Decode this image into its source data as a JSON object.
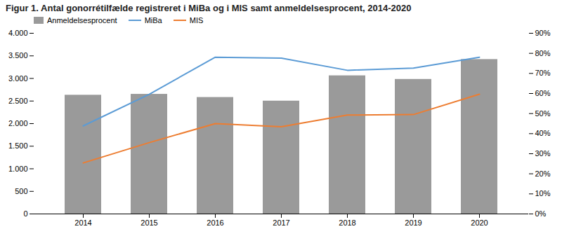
{
  "chart_data": {
    "type": "bar",
    "title": "Figur 1. Antal gonorrétilfælde registreret i MiBa og i MIS samt anmeldelsesprocent, 2014-2020",
    "categories": [
      "2014",
      "2015",
      "2016",
      "2017",
      "2018",
      "2019",
      "2020"
    ],
    "series": [
      {
        "name": "Anmeldelsesprocent",
        "type": "bar",
        "color": "#9a9a9a",
        "values": [
          2630,
          2650,
          2580,
          2500,
          3060,
          2980,
          3420
        ]
      },
      {
        "name": "MiBa",
        "type": "line",
        "color": "#5b9bd5",
        "values": [
          1950,
          2650,
          3470,
          3450,
          3180,
          3230,
          3470
        ]
      },
      {
        "name": "MIS",
        "type": "line",
        "color": "#ed7d31",
        "values": [
          1130,
          1580,
          2000,
          1930,
          2190,
          2200,
          2650
        ]
      }
    ],
    "ylim": [
      0,
      4000
    ],
    "yticks": [
      0,
      500,
      {
        "value": 1000,
        "label": "1.000"
      },
      {
        "value": 1500,
        "label": "1.500"
      },
      {
        "value": 2000,
        "label": "2.000"
      },
      {
        "value": 2500,
        "label": "2.500"
      },
      {
        "value": 3000,
        "label": "3.000"
      },
      {
        "value": 3500,
        "label": "3.500"
      },
      {
        "value": 4000,
        "label": "4.000"
      }
    ],
    "y2lim": [
      0,
      0.9
    ],
    "y2ticks": [
      {
        "value": 0.0,
        "label": "0%"
      },
      {
        "value": 0.1,
        "label": "10%"
      },
      {
        "value": 0.2,
        "label": "20%"
      },
      {
        "value": 0.3,
        "label": "30%"
      },
      {
        "value": 0.4,
        "label": "40%"
      },
      {
        "value": 0.5,
        "label": "50%"
      },
      {
        "value": 0.6,
        "label": "60%"
      },
      {
        "value": 0.7,
        "label": "70%"
      },
      {
        "value": 0.8,
        "label": "80%"
      },
      {
        "value": 0.9,
        "label": "90%"
      }
    ],
    "legend": "upper left",
    "grid": false
  }
}
